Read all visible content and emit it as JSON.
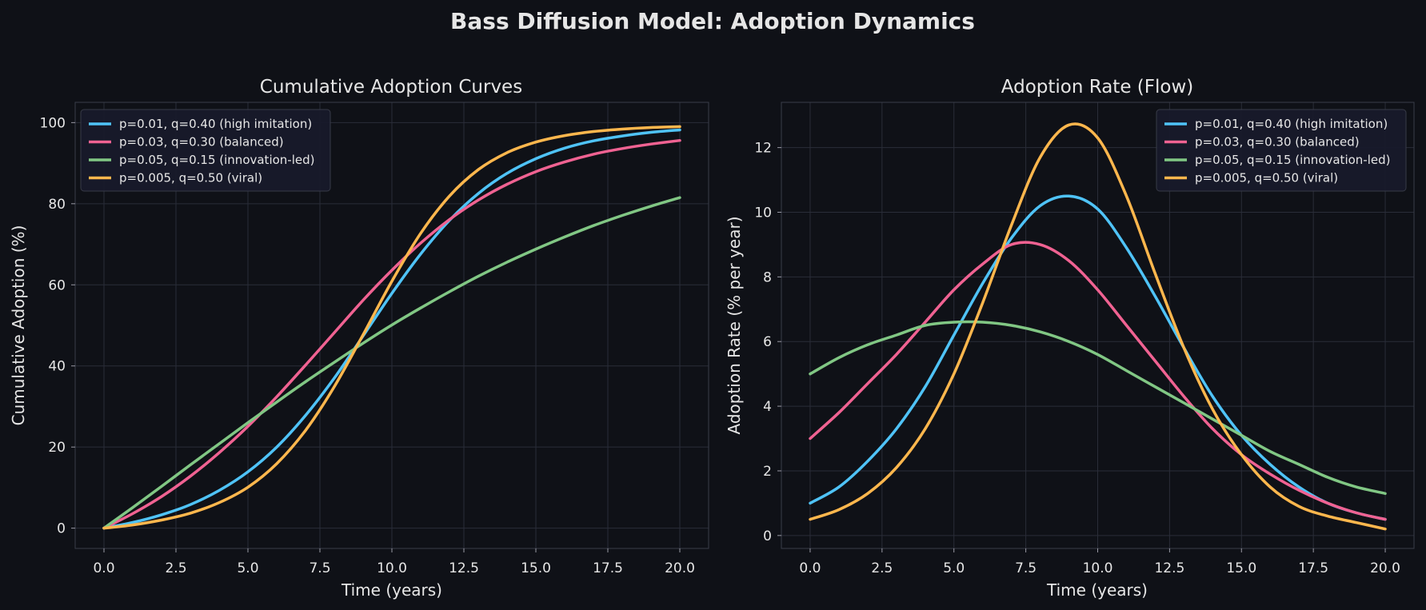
{
  "figure": {
    "title": "Bass Diffusion Model: Adoption Dynamics",
    "background": "#0f1117"
  },
  "legend_labels": [
    "p=0.01, q=0.40 (high imitation)",
    "p=0.03, q=0.30 (balanced)",
    "p=0.05, q=0.15 (innovation-led)",
    "p=0.005, q=0.50 (viral)"
  ],
  "colors": [
    "#4fc3f7",
    "#f06292",
    "#81c784",
    "#ffb74d"
  ],
  "chart_data": [
    {
      "type": "line",
      "title": "Cumulative Adoption Curves",
      "xlabel": "Time (years)",
      "ylabel": "Cumulative Adoption (%)",
      "xlim": [
        -1.0,
        21.0
      ],
      "ylim": [
        -5.0,
        105.0
      ],
      "xticks": [
        0.0,
        2.5,
        5.0,
        7.5,
        10.0,
        12.5,
        15.0,
        17.5,
        20.0
      ],
      "xtick_labels": [
        "0.0",
        "2.5",
        "5.0",
        "7.5",
        "10.0",
        "12.5",
        "15.0",
        "17.5",
        "20.0"
      ],
      "yticks": [
        0,
        20,
        40,
        60,
        80,
        100
      ],
      "ytick_labels": [
        "0",
        "20",
        "40",
        "60",
        "80",
        "100"
      ],
      "grid": true,
      "legend_position": "upper-left",
      "x": [
        0,
        1,
        2,
        3,
        4,
        5,
        6,
        7,
        8,
        9,
        10,
        11,
        12,
        13,
        14,
        15,
        16,
        17,
        18,
        19,
        20
      ],
      "series": [
        {
          "name": "p=0.01, q=0.40 (high imitation)",
          "values": [
            0.0,
            1.4,
            3.3,
            5.8,
            9.3,
            13.9,
            20.0,
            27.8,
            37.0,
            47.4,
            57.9,
            67.6,
            75.9,
            82.5,
            87.5,
            91.1,
            93.7,
            95.5,
            96.7,
            97.6,
            98.2
          ]
        },
        {
          "name": "p=0.03, q=0.30 (balanced)",
          "values": [
            0.0,
            3.6,
            7.8,
            12.8,
            18.6,
            25.1,
            32.4,
            40.2,
            48.2,
            56.2,
            63.6,
            70.3,
            76.1,
            80.9,
            84.8,
            87.9,
            90.3,
            92.2,
            93.6,
            94.7,
            95.6
          ]
        },
        {
          "name": "p=0.05, q=0.15 (innovation-led)",
          "values": [
            0.0,
            5.1,
            10.3,
            15.6,
            20.8,
            26.0,
            31.1,
            36.1,
            40.9,
            45.6,
            50.1,
            54.3,
            58.3,
            62.1,
            65.6,
            68.8,
            71.8,
            74.6,
            77.1,
            79.4,
            81.5
          ]
        },
        {
          "name": "p=0.005, q=0.50 (viral)",
          "values": [
            0.0,
            0.8,
            2.0,
            3.7,
            6.3,
            10.1,
            15.9,
            24.1,
            34.9,
            47.7,
            60.9,
            72.7,
            81.9,
            88.4,
            92.6,
            95.2,
            96.8,
            97.8,
            98.4,
            98.8,
            99.0
          ]
        }
      ]
    },
    {
      "type": "line",
      "title": "Adoption Rate (Flow)",
      "xlabel": "Time (years)",
      "ylabel": "Adoption Rate (% per year)",
      "xlim": [
        -1.0,
        21.0
      ],
      "ylim": [
        -0.4,
        13.4
      ],
      "xticks": [
        0.0,
        2.5,
        5.0,
        7.5,
        10.0,
        12.5,
        15.0,
        17.5,
        20.0
      ],
      "xtick_labels": [
        "0.0",
        "2.5",
        "5.0",
        "7.5",
        "10.0",
        "12.5",
        "15.0",
        "17.5",
        "20.0"
      ],
      "yticks": [
        0,
        2,
        4,
        6,
        8,
        10,
        12
      ],
      "ytick_labels": [
        "0",
        "2",
        "4",
        "6",
        "8",
        "10",
        "12"
      ],
      "grid": true,
      "legend_position": "upper-right",
      "x": [
        0,
        1,
        2,
        3,
        4,
        5,
        6,
        7,
        8,
        9,
        10,
        11,
        12,
        13,
        14,
        15,
        16,
        17,
        18,
        19,
        20
      ],
      "series": [
        {
          "name": "p=0.01, q=0.40 (high imitation)",
          "values": [
            1.0,
            1.5,
            2.3,
            3.3,
            4.6,
            6.2,
            7.8,
            9.2,
            10.2,
            10.5,
            10.1,
            8.9,
            7.4,
            5.8,
            4.3,
            3.1,
            2.2,
            1.5,
            1.0,
            0.7,
            0.5
          ]
        },
        {
          "name": "p=0.03, q=0.30 (balanced)",
          "values": [
            3.0,
            3.8,
            4.7,
            5.6,
            6.6,
            7.6,
            8.4,
            9.0,
            9.0,
            8.5,
            7.6,
            6.5,
            5.4,
            4.3,
            3.3,
            2.5,
            1.9,
            1.4,
            1.0,
            0.7,
            0.5
          ]
        },
        {
          "name": "p=0.05, q=0.15 (innovation-led)",
          "values": [
            5.0,
            5.5,
            5.9,
            6.2,
            6.5,
            6.6,
            6.6,
            6.5,
            6.3,
            6.0,
            5.6,
            5.1,
            4.6,
            4.1,
            3.6,
            3.1,
            2.6,
            2.2,
            1.8,
            1.5,
            1.3
          ]
        },
        {
          "name": "p=0.005, q=0.50 (viral)",
          "values": [
            0.5,
            0.8,
            1.3,
            2.1,
            3.3,
            5.0,
            7.2,
            9.6,
            11.7,
            12.7,
            12.3,
            10.5,
            8.1,
            5.8,
            3.9,
            2.5,
            1.5,
            0.9,
            0.6,
            0.4,
            0.2
          ]
        }
      ]
    }
  ]
}
